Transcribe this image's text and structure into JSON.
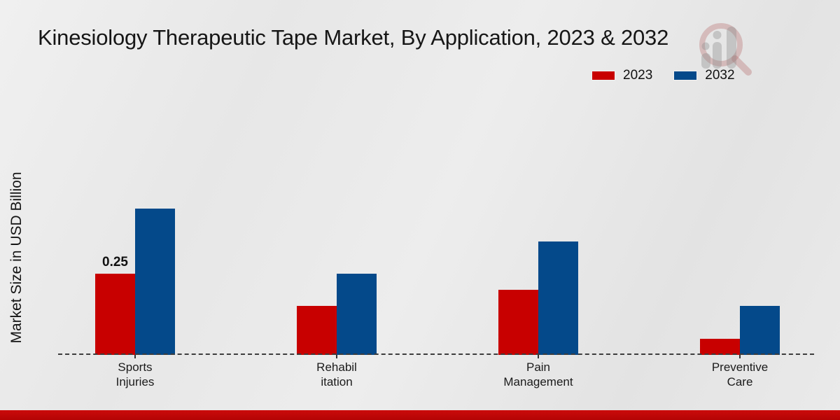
{
  "colors": {
    "series_2023": "#c80000",
    "series_2032": "#04498a",
    "footer_bar": "#bf0707",
    "background": "#e9e9e9",
    "text": "#161616"
  },
  "header": {
    "title": "Kinesiology Therapeutic Tape Market, By Application, 2023 & 2032"
  },
  "legend": {
    "items": [
      {
        "label": "2023",
        "color": "#c80000"
      },
      {
        "label": "2032",
        "color": "#04498a"
      }
    ]
  },
  "chart_data": {
    "type": "bar",
    "title": "Kinesiology Therapeutic Tape Market, By Application, 2023 & 2032",
    "xlabel": "",
    "ylabel": "Market Size in USD Billion",
    "categories": [
      "Sports Injuries",
      "Rehabilitation",
      "Pain Management",
      "Preventive Care"
    ],
    "category_display": [
      "Sports\nInjuries",
      "Rehabil\nitation",
      "Pain\nManagement",
      "Preventive\nCare"
    ],
    "series": [
      {
        "name": "2023",
        "color": "#c80000",
        "values": [
          0.25,
          0.15,
          0.2,
          0.05
        ]
      },
      {
        "name": "2032",
        "color": "#04498a",
        "values": [
          0.45,
          0.25,
          0.35,
          0.15
        ]
      }
    ],
    "ylim": [
      0,
      0.5
    ],
    "grid": false,
    "legend_position": "upper right",
    "annotations": [
      {
        "category": "Sports Injuries",
        "series": "2023",
        "text": "0.25"
      }
    ]
  }
}
